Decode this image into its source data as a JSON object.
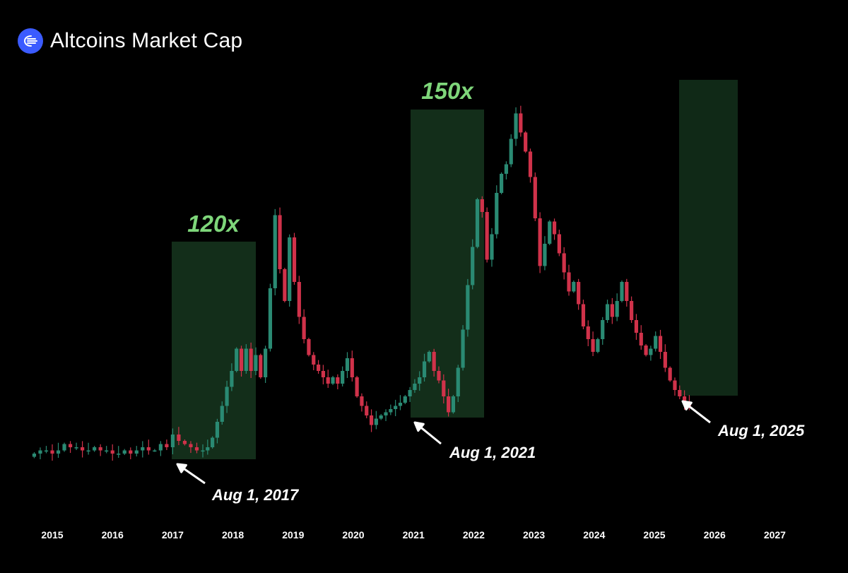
{
  "title": "Altcoins Market Cap",
  "colors": {
    "up": "#2a8a73",
    "down": "#d0324a",
    "zone": "#1e4a2a",
    "accent": "#7ed67a",
    "logo": "#3b5bff"
  },
  "chart_data": {
    "type": "candlestick",
    "x_axis": {
      "tick_labels": [
        "2015",
        "2016",
        "2017",
        "2018",
        "2019",
        "2020",
        "2021",
        "2022",
        "2023",
        "2024",
        "2025",
        "2026",
        "2027"
      ]
    },
    "y_axis": {
      "shown": false
    },
    "grid": false,
    "candles": [
      {
        "t": 2014.7,
        "o": 3,
        "c": 4
      },
      {
        "t": 2014.8,
        "o": 4,
        "c": 5
      },
      {
        "t": 2014.9,
        "o": 5,
        "c": 5
      },
      {
        "t": 2015.0,
        "o": 5,
        "c": 4
      },
      {
        "t": 2015.1,
        "o": 4,
        "c": 5
      },
      {
        "t": 2015.2,
        "o": 5,
        "c": 7
      },
      {
        "t": 2015.3,
        "o": 7,
        "c": 6
      },
      {
        "t": 2015.4,
        "o": 6,
        "c": 6
      },
      {
        "t": 2015.5,
        "o": 6,
        "c": 5
      },
      {
        "t": 2015.6,
        "o": 5,
        "c": 5
      },
      {
        "t": 2015.7,
        "o": 5,
        "c": 6
      },
      {
        "t": 2015.8,
        "o": 6,
        "c": 5
      },
      {
        "t": 2015.9,
        "o": 5,
        "c": 5
      },
      {
        "t": 2016.0,
        "o": 5,
        "c": 4
      },
      {
        "t": 2016.1,
        "o": 4,
        "c": 4
      },
      {
        "t": 2016.2,
        "o": 4,
        "c": 5
      },
      {
        "t": 2016.3,
        "o": 5,
        "c": 4
      },
      {
        "t": 2016.4,
        "o": 4,
        "c": 5
      },
      {
        "t": 2016.5,
        "o": 5,
        "c": 6
      },
      {
        "t": 2016.6,
        "o": 6,
        "c": 5
      },
      {
        "t": 2016.7,
        "o": 5,
        "c": 5
      },
      {
        "t": 2016.8,
        "o": 5,
        "c": 7
      },
      {
        "t": 2016.9,
        "o": 7,
        "c": 6
      },
      {
        "t": 2017.0,
        "o": 6,
        "c": 10
      },
      {
        "t": 2017.1,
        "o": 10,
        "c": 8
      },
      {
        "t": 2017.2,
        "o": 8,
        "c": 7
      },
      {
        "t": 2017.3,
        "o": 7,
        "c": 6
      },
      {
        "t": 2017.4,
        "o": 6,
        "c": 5
      },
      {
        "t": 2017.5,
        "o": 5,
        "c": 5
      },
      {
        "t": 2017.58,
        "o": 5,
        "c": 6
      },
      {
        "t": 2017.66,
        "o": 6,
        "c": 9
      },
      {
        "t": 2017.74,
        "o": 9,
        "c": 14
      },
      {
        "t": 2017.82,
        "o": 14,
        "c": 19
      },
      {
        "t": 2017.9,
        "o": 19,
        "c": 25
      },
      {
        "t": 2017.98,
        "o": 25,
        "c": 30
      },
      {
        "t": 2018.06,
        "o": 30,
        "c": 37
      },
      {
        "t": 2018.14,
        "o": 37,
        "c": 30
      },
      {
        "t": 2018.22,
        "o": 30,
        "c": 37
      },
      {
        "t": 2018.3,
        "o": 37,
        "c": 30
      },
      {
        "t": 2018.38,
        "o": 30,
        "c": 35
      },
      {
        "t": 2018.46,
        "o": 35,
        "c": 28
      },
      {
        "t": 2018.54,
        "o": 28,
        "c": 37
      },
      {
        "t": 2018.62,
        "o": 37,
        "c": 56
      },
      {
        "t": 2018.7,
        "o": 56,
        "c": 79
      },
      {
        "t": 2018.78,
        "o": 79,
        "c": 62
      },
      {
        "t": 2018.86,
        "o": 62,
        "c": 52
      },
      {
        "t": 2018.94,
        "o": 52,
        "c": 72
      },
      {
        "t": 2019.02,
        "o": 72,
        "c": 58
      },
      {
        "t": 2019.1,
        "o": 58,
        "c": 47
      },
      {
        "t": 2019.18,
        "o": 47,
        "c": 40
      },
      {
        "t": 2019.26,
        "o": 40,
        "c": 35
      },
      {
        "t": 2019.34,
        "o": 35,
        "c": 32
      },
      {
        "t": 2019.42,
        "o": 32,
        "c": 30
      },
      {
        "t": 2019.5,
        "o": 30,
        "c": 28
      },
      {
        "t": 2019.58,
        "o": 28,
        "c": 26
      },
      {
        "t": 2019.66,
        "o": 26,
        "c": 28
      },
      {
        "t": 2019.74,
        "o": 28,
        "c": 26
      },
      {
        "t": 2019.82,
        "o": 26,
        "c": 30
      },
      {
        "t": 2019.9,
        "o": 30,
        "c": 34
      },
      {
        "t": 2019.98,
        "o": 34,
        "c": 28
      },
      {
        "t": 2020.06,
        "o": 28,
        "c": 22
      },
      {
        "t": 2020.14,
        "o": 22,
        "c": 19
      },
      {
        "t": 2020.22,
        "o": 19,
        "c": 16
      },
      {
        "t": 2020.3,
        "o": 16,
        "c": 13
      },
      {
        "t": 2020.38,
        "o": 13,
        "c": 15
      },
      {
        "t": 2020.46,
        "o": 15,
        "c": 16
      },
      {
        "t": 2020.54,
        "o": 16,
        "c": 17
      },
      {
        "t": 2020.62,
        "o": 17,
        "c": 18
      },
      {
        "t": 2020.7,
        "o": 18,
        "c": 19
      },
      {
        "t": 2020.78,
        "o": 19,
        "c": 20
      },
      {
        "t": 2020.86,
        "o": 20,
        "c": 22
      },
      {
        "t": 2020.94,
        "o": 22,
        "c": 24
      },
      {
        "t": 2021.02,
        "o": 24,
        "c": 26
      },
      {
        "t": 2021.1,
        "o": 26,
        "c": 28
      },
      {
        "t": 2021.18,
        "o": 28,
        "c": 33
      },
      {
        "t": 2021.26,
        "o": 33,
        "c": 36
      },
      {
        "t": 2021.34,
        "o": 36,
        "c": 30
      },
      {
        "t": 2021.42,
        "o": 30,
        "c": 27
      },
      {
        "t": 2021.5,
        "o": 27,
        "c": 22
      },
      {
        "t": 2021.58,
        "o": 22,
        "c": 17
      },
      {
        "t": 2021.66,
        "o": 17,
        "c": 22
      },
      {
        "t": 2021.74,
        "o": 22,
        "c": 31
      },
      {
        "t": 2021.82,
        "o": 31,
        "c": 43
      },
      {
        "t": 2021.9,
        "o": 43,
        "c": 57
      },
      {
        "t": 2021.98,
        "o": 57,
        "c": 69
      },
      {
        "t": 2022.06,
        "o": 69,
        "c": 84
      },
      {
        "t": 2022.14,
        "o": 84,
        "c": 80
      },
      {
        "t": 2022.22,
        "o": 80,
        "c": 65
      },
      {
        "t": 2022.3,
        "o": 65,
        "c": 73
      },
      {
        "t": 2022.38,
        "o": 73,
        "c": 86
      },
      {
        "t": 2022.46,
        "o": 86,
        "c": 92
      },
      {
        "t": 2022.54,
        "o": 92,
        "c": 95
      },
      {
        "t": 2022.62,
        "o": 95,
        "c": 103
      },
      {
        "t": 2022.7,
        "o": 103,
        "c": 111
      },
      {
        "t": 2022.78,
        "o": 111,
        "c": 105
      },
      {
        "t": 2022.86,
        "o": 105,
        "c": 99
      },
      {
        "t": 2022.94,
        "o": 99,
        "c": 91
      },
      {
        "t": 2023.02,
        "o": 91,
        "c": 78
      },
      {
        "t": 2023.1,
        "o": 78,
        "c": 63
      },
      {
        "t": 2023.18,
        "o": 63,
        "c": 70
      },
      {
        "t": 2023.26,
        "o": 70,
        "c": 77
      },
      {
        "t": 2023.34,
        "o": 77,
        "c": 73
      },
      {
        "t": 2023.42,
        "o": 73,
        "c": 67
      },
      {
        "t": 2023.5,
        "o": 67,
        "c": 61
      },
      {
        "t": 2023.58,
        "o": 61,
        "c": 55
      },
      {
        "t": 2023.66,
        "o": 55,
        "c": 58
      },
      {
        "t": 2023.74,
        "o": 58,
        "c": 51
      },
      {
        "t": 2023.82,
        "o": 51,
        "c": 44
      },
      {
        "t": 2023.9,
        "o": 44,
        "c": 40
      },
      {
        "t": 2023.98,
        "o": 40,
        "c": 36
      },
      {
        "t": 2024.06,
        "o": 36,
        "c": 40
      },
      {
        "t": 2024.14,
        "o": 40,
        "c": 46
      },
      {
        "t": 2024.22,
        "o": 46,
        "c": 51
      },
      {
        "t": 2024.3,
        "o": 51,
        "c": 47
      },
      {
        "t": 2024.38,
        "o": 47,
        "c": 52
      },
      {
        "t": 2024.46,
        "o": 52,
        "c": 58
      },
      {
        "t": 2024.54,
        "o": 58,
        "c": 52
      },
      {
        "t": 2024.62,
        "o": 52,
        "c": 46
      },
      {
        "t": 2024.7,
        "o": 46,
        "c": 42
      },
      {
        "t": 2024.78,
        "o": 42,
        "c": 38
      },
      {
        "t": 2024.86,
        "o": 38,
        "c": 35
      },
      {
        "t": 2024.94,
        "o": 35,
        "c": 37
      },
      {
        "t": 2025.02,
        "o": 37,
        "c": 41
      },
      {
        "t": 2025.1,
        "o": 41,
        "c": 36
      },
      {
        "t": 2025.18,
        "o": 36,
        "c": 31
      },
      {
        "t": 2025.26,
        "o": 31,
        "c": 27
      },
      {
        "t": 2025.34,
        "o": 27,
        "c": 24
      },
      {
        "t": 2025.42,
        "o": 24,
        "c": 22
      },
      {
        "t": 2025.5,
        "o": 22,
        "c": 20
      },
      {
        "t": 2025.58,
        "o": 20,
        "c": 19
      }
    ],
    "highlight_zones": [
      {
        "start": "Aug 1, 2017",
        "label": "120x"
      },
      {
        "start": "Aug 1, 2021",
        "label": "150x"
      },
      {
        "start": "Aug 1, 2025",
        "label": ""
      }
    ],
    "annotations": [
      "Aug 1, 2017",
      "Aug 1, 2021",
      "Aug 1, 2025"
    ]
  }
}
